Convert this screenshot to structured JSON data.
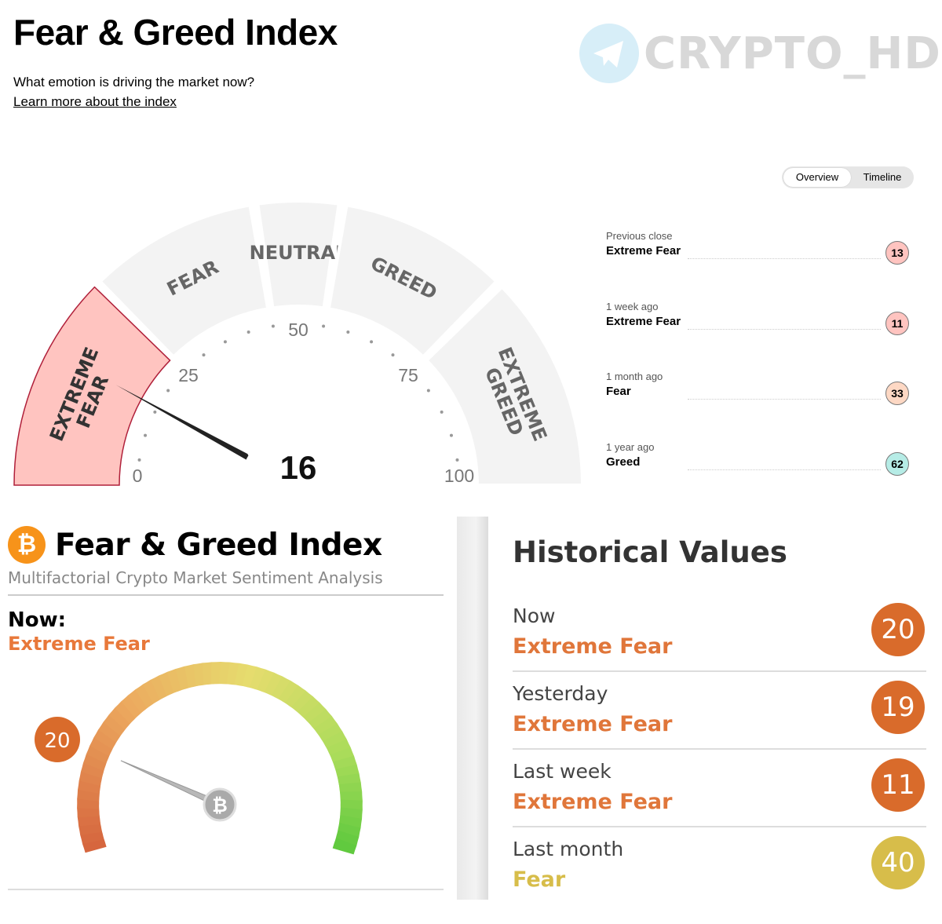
{
  "cnn": {
    "title": "Fear & Greed Index",
    "subtitle": "What emotion is driving the market now?",
    "learn_more": "Learn more about the index",
    "watermark": "CRYPTO_HD",
    "toggle": {
      "overview": "Overview",
      "timeline": "Timeline"
    },
    "gauge": {
      "value": 16,
      "min": 0,
      "max": 100,
      "sections": [
        "EXTREME FEAR",
        "FEAR",
        "NEUTRAL",
        "GREED",
        "EXTREME GREED"
      ],
      "ticks": [
        "0",
        "25",
        "50",
        "75",
        "100"
      ],
      "active_color": "#ffc4c0",
      "inactive_color": "#f3f3f3"
    },
    "history": [
      {
        "label": "Previous close",
        "value": "Extreme Fear",
        "score": "13",
        "color": "#ffc4c0"
      },
      {
        "label": "1 week ago",
        "value": "Extreme Fear",
        "score": "11",
        "color": "#ffc4c0"
      },
      {
        "label": "1 month ago",
        "value": "Fear",
        "score": "33",
        "color": "#fdd8c4"
      },
      {
        "label": "1 year ago",
        "value": "Greed",
        "score": "62",
        "color": "#b6ece6"
      }
    ]
  },
  "alt": {
    "logo_glyph": "₿",
    "title": "Fear & Greed Index",
    "subtitle": "Multifactorial Crypto Market Sentiment Analysis",
    "now_label": "Now:",
    "now_value": "Extreme Fear",
    "gauge": {
      "value": 20,
      "min": 0,
      "max": 100,
      "badge_color": "#d96b2b"
    },
    "center_glyph": "₿"
  },
  "historical": {
    "title": "Historical Values",
    "rows": [
      {
        "label": "Now",
        "value": "Extreme Fear",
        "score": "20",
        "color": "#d96b2b"
      },
      {
        "label": "Yesterday",
        "value": "Extreme Fear",
        "score": "19",
        "color": "#d96b2b"
      },
      {
        "label": "Last week",
        "value": "Extreme Fear",
        "score": "11",
        "color": "#d96b2b"
      },
      {
        "label": "Last month",
        "value": "Fear",
        "score": "40",
        "color": "#d7bd4a"
      }
    ]
  }
}
